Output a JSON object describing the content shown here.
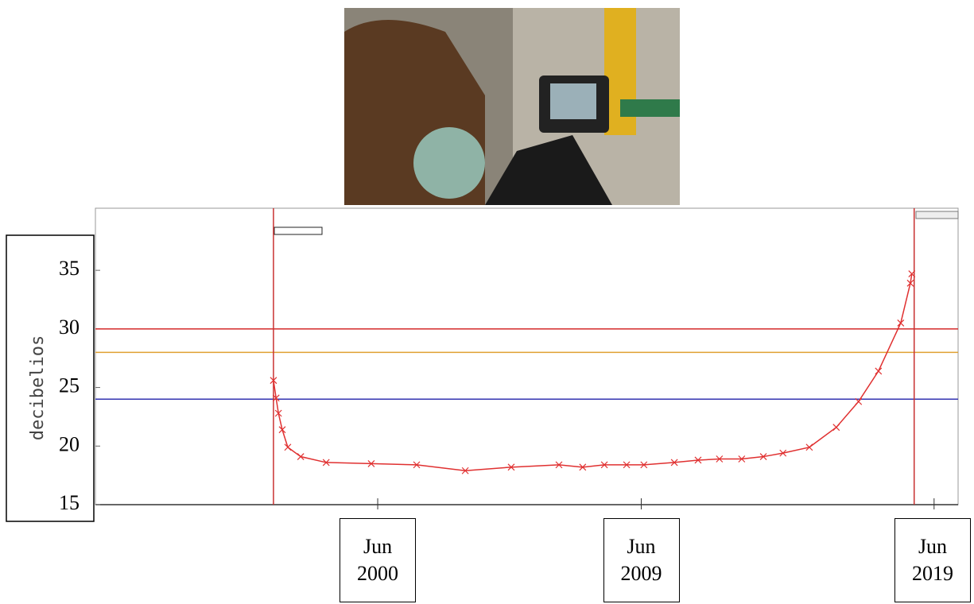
{
  "chart_data": {
    "type": "line",
    "y_label": "decibelios",
    "ylim": [
      15,
      40.3
    ],
    "yticks": [
      15,
      20,
      25,
      30,
      35
    ],
    "xlim": [
      1990.78,
      2020.24
    ],
    "xticks": [
      {
        "value": 2000.42,
        "label": "Jun 2000"
      },
      {
        "value": 2009.42,
        "label": "Jun 2009"
      },
      {
        "value": 2019.42,
        "label": "Jun 2019"
      }
    ],
    "reference_lines": [
      {
        "value": 30,
        "color": "#d42a2a"
      },
      {
        "value": 28,
        "color": "#e0a030"
      },
      {
        "value": 24,
        "color": "#3333b0"
      }
    ],
    "vertical_lines": [
      {
        "value": 1996.86,
        "color": "#c83232"
      },
      {
        "value": 2018.74,
        "color": "#c83232"
      }
    ],
    "series": [
      {
        "color": "#e03030",
        "x": [
          1996.86,
          1996.95,
          1997.03,
          1997.16,
          1997.35,
          1997.79,
          1998.66,
          2000.2,
          2001.75,
          2003.41,
          2004.98,
          2006.61,
          2007.42,
          2008.16,
          2008.92,
          2009.51,
          2010.55,
          2011.36,
          2012.09,
          2012.85,
          2013.59,
          2014.26,
          2015.16,
          2016.08,
          2016.84,
          2017.52,
          2018.28,
          2018.61,
          2018.66
        ],
        "values": [
          25.6,
          24.1,
          22.8,
          21.4,
          19.9,
          19.1,
          18.6,
          18.5,
          18.4,
          17.9,
          18.2,
          18.4,
          18.2,
          18.4,
          18.4,
          18.4,
          18.6,
          18.8,
          18.9,
          18.9,
          19.1,
          19.4,
          19.9,
          21.6,
          23.8,
          26.4,
          30.5,
          33.9,
          34.7
        ]
      }
    ]
  }
}
